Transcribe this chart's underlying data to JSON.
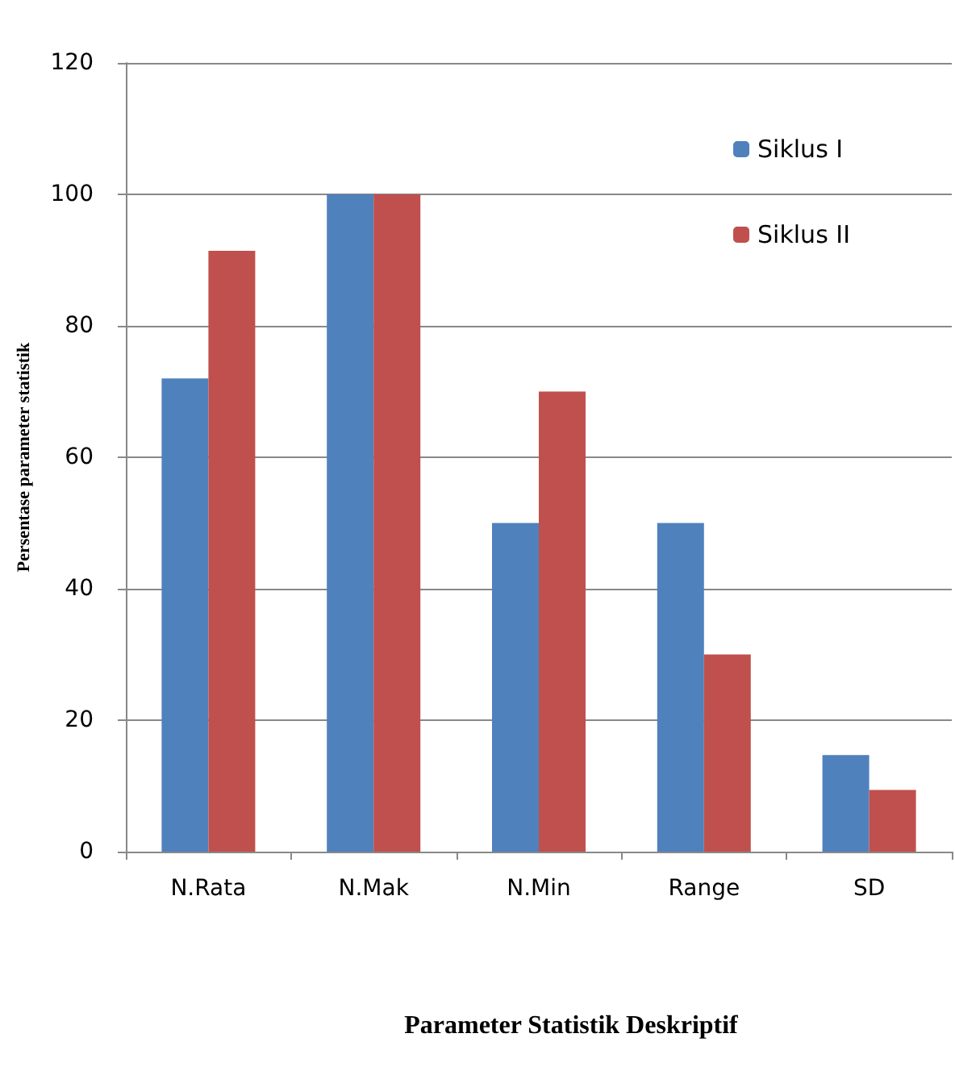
{
  "chart_data": {
    "type": "bar",
    "xlabel": "Parameter Statistik Deskriptif",
    "ylabel": "Persentase parameter statistik",
    "categories": [
      "N.Rata",
      "N.Mak",
      "N.Min",
      "Range",
      "SD"
    ],
    "series": [
      {
        "name": "Siklus I",
        "color": "#4f81bd",
        "values": [
          72,
          100,
          50,
          50,
          14.7
        ]
      },
      {
        "name": "Siklus II",
        "color": "#c0504d",
        "values": [
          91.4,
          100,
          70,
          30,
          9.4
        ]
      }
    ],
    "ylim": [
      0,
      120
    ],
    "yticks": [
      0,
      20,
      40,
      60,
      80,
      100,
      120
    ],
    "grid": "y",
    "legend": "top right"
  }
}
